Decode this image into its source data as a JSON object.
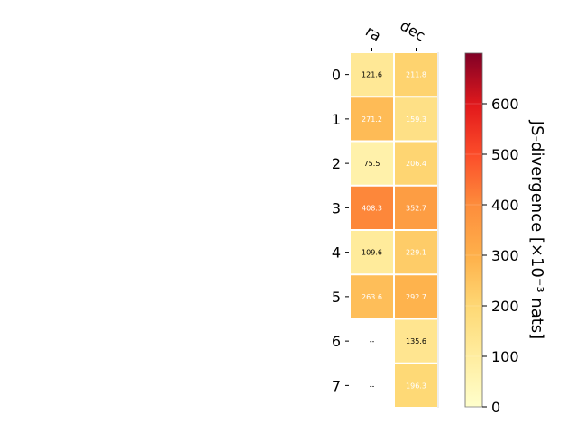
{
  "chart_data": {
    "type": "heatmap",
    "columns": [
      "ra",
      "dec"
    ],
    "rows": [
      "0",
      "1",
      "2",
      "3",
      "4",
      "5",
      "6",
      "7"
    ],
    "values": [
      [
        121.6,
        211.8
      ],
      [
        271.2,
        159.3
      ],
      [
        75.5,
        206.4
      ],
      [
        408.3,
        352.7
      ],
      [
        109.6,
        229.1
      ],
      [
        263.6,
        292.7
      ],
      [
        null,
        135.6
      ],
      [
        null,
        196.3
      ]
    ],
    "cell_labels": [
      [
        "121.6",
        "211.8"
      ],
      [
        "271.2",
        "159.3"
      ],
      [
        "75.5",
        "206.4"
      ],
      [
        "408.3",
        "352.7"
      ],
      [
        "109.6",
        "229.1"
      ],
      [
        "263.6",
        "292.7"
      ],
      [
        "--",
        "135.6"
      ],
      [
        "--",
        "196.3"
      ]
    ],
    "colorbar": {
      "label": "JS-divergence [×10⁻³ nats]",
      "min": 0,
      "max": 700,
      "ticks": [
        "0",
        "100",
        "200",
        "300",
        "400",
        "500",
        "600"
      ],
      "tick_values": [
        0,
        100,
        200,
        300,
        400,
        500,
        600
      ],
      "colormap": "YlOrRd"
    }
  }
}
